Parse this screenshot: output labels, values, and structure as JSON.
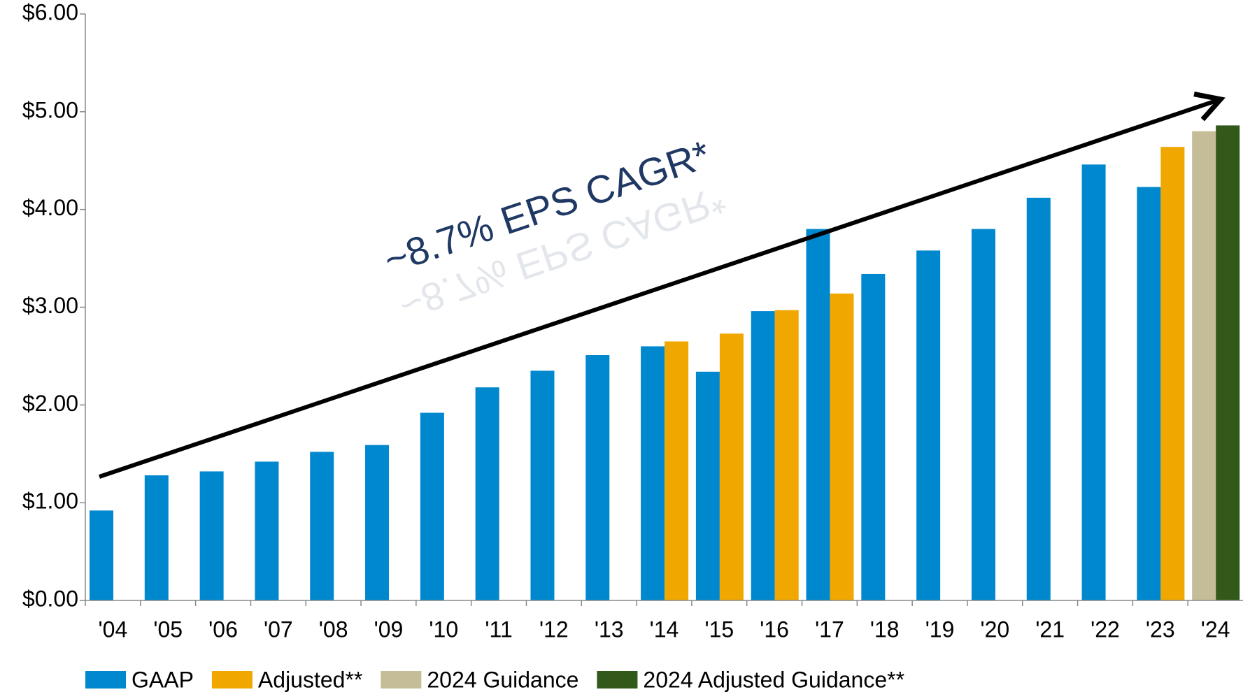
{
  "chart_data": {
    "type": "bar",
    "categories": [
      "'04",
      "'05",
      "'06",
      "'07",
      "'08",
      "'09",
      "'10",
      "'11",
      "'12",
      "'13",
      "'14",
      "'15",
      "'16",
      "'17",
      "'18",
      "'19",
      "'20",
      "'21",
      "'22",
      "'23",
      "'24"
    ],
    "series": [
      {
        "name": "GAAP",
        "color": "#0088cf",
        "values": [
          0.92,
          1.28,
          1.32,
          1.42,
          1.52,
          1.59,
          1.92,
          2.18,
          2.35,
          2.51,
          2.6,
          2.34,
          2.96,
          3.8,
          3.34,
          3.58,
          3.8,
          4.12,
          4.46,
          4.23,
          null
        ]
      },
      {
        "name": "Adjusted**",
        "color": "#f0a800",
        "values": [
          null,
          null,
          null,
          null,
          null,
          null,
          null,
          null,
          null,
          null,
          2.65,
          2.73,
          2.97,
          3.14,
          null,
          null,
          null,
          null,
          null,
          4.64,
          null
        ]
      },
      {
        "name": "2024 Guidance",
        "color": "#c4bd97",
        "values": [
          null,
          null,
          null,
          null,
          null,
          null,
          null,
          null,
          null,
          null,
          null,
          null,
          null,
          null,
          null,
          null,
          null,
          null,
          null,
          null,
          4.8
        ]
      },
      {
        "name": "2024 Adjusted Guidance**",
        "color": "#33591a",
        "values": [
          null,
          null,
          null,
          null,
          null,
          null,
          null,
          null,
          null,
          null,
          null,
          null,
          null,
          null,
          null,
          null,
          null,
          null,
          null,
          null,
          4.86
        ]
      }
    ],
    "annotation": "~8.7% EPS CAGR*",
    "ylim": [
      0,
      6
    ],
    "yticks": [
      {
        "value": 0,
        "label": "$0.00"
      },
      {
        "value": 1,
        "label": "$1.00"
      },
      {
        "value": 2,
        "label": "$2.00"
      },
      {
        "value": 3,
        "label": "$3.00"
      },
      {
        "value": 4,
        "label": "$4.00"
      },
      {
        "value": 5,
        "label": "$5.00"
      },
      {
        "value": 6,
        "label": "$6.00"
      }
    ],
    "legend": "bottom"
  }
}
